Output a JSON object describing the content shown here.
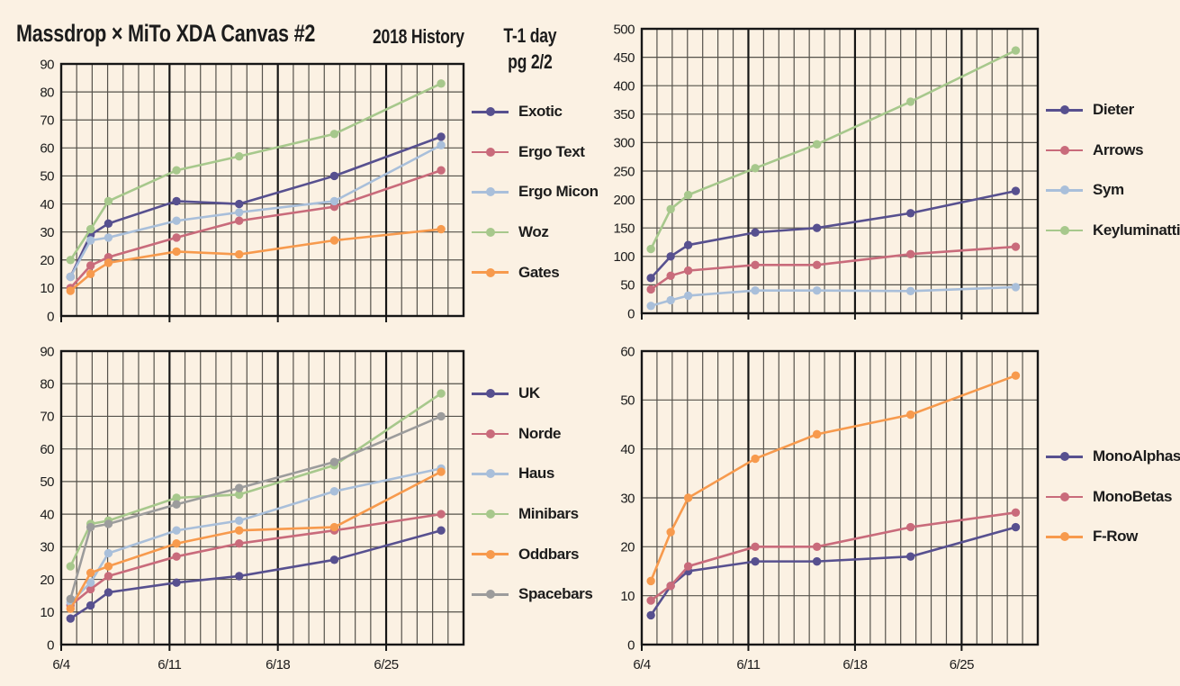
{
  "header": {
    "title": "Massdrop × MiTo XDA Canvas #2",
    "subtitle": "2018 History",
    "note_line1": "T-1 day",
    "note_line2": "pg 2/2"
  },
  "colors": {
    "background": "#fbf1e3",
    "grid": "#55524b",
    "axis": "#161616",
    "text": "#1c1c1c",
    "purple": "#57508f",
    "rose": "#c96b7b",
    "light_blue": "#a9bfda",
    "green": "#a7c88c",
    "orange": "#f79a4d",
    "gray": "#9c9c9c"
  },
  "chart_data": {
    "type": "line",
    "x_axis": {
      "max_days": 26,
      "point_days": [
        0.6,
        1.9,
        3.05,
        7.45,
        11.5,
        17.65,
        24.55
      ],
      "tick_days": [
        0,
        7,
        14,
        21
      ],
      "tick_labels": [
        "6/4",
        "6/11",
        "6/18",
        "6/25"
      ]
    },
    "charts": [
      {
        "id": "top-left",
        "ylim": [
          0,
          90
        ],
        "ystep": 10,
        "y_tick_labels": [
          "90",
          "80",
          "70",
          "60",
          "50",
          "40",
          "30",
          "20",
          "10",
          "0"
        ],
        "series": [
          {
            "name": "Exotic",
            "color": "#57508f",
            "values": [
              14,
              29,
              33,
              41,
              40,
              50,
              64
            ]
          },
          {
            "name": "Ergo Text",
            "color": "#c96b7b",
            "values": [
              10,
              18,
              21,
              28,
              34,
              39,
              52
            ]
          },
          {
            "name": "Ergo Micon",
            "color": "#a9bfda",
            "values": [
              14,
              27,
              28,
              34,
              37,
              41,
              61
            ]
          },
          {
            "name": "Woz",
            "color": "#a7c88c",
            "values": [
              20,
              31,
              41,
              52,
              57,
              65,
              83
            ]
          },
          {
            "name": "Gates",
            "color": "#f79a4d",
            "values": [
              9,
              15,
              19,
              23,
              22,
              27,
              31
            ]
          }
        ]
      },
      {
        "id": "top-right",
        "ylim": [
          0,
          500
        ],
        "ystep": 50,
        "y_tick_labels": [
          "500",
          "450",
          "400",
          "350",
          "300",
          "250",
          "200",
          "150",
          "100",
          "50",
          "0"
        ],
        "series": [
          {
            "name": "Dieter",
            "color": "#57508f",
            "values": [
              62,
              100,
              120,
              142,
              150,
              176,
              215
            ]
          },
          {
            "name": "Arrows",
            "color": "#c96b7b",
            "values": [
              42,
              66,
              75,
              85,
              85,
              104,
              117
            ]
          },
          {
            "name": "Sym",
            "color": "#a9bfda",
            "values": [
              13,
              23,
              31,
              40,
              40,
              39,
              46
            ]
          },
          {
            "name": "Keyluminatti",
            "color": "#a7c88c",
            "values": [
              113,
              183,
              208,
              255,
              297,
              372,
              462
            ]
          }
        ]
      },
      {
        "id": "bottom-left",
        "ylim": [
          0,
          90
        ],
        "ystep": 10,
        "y_tick_labels": [
          "90",
          "80",
          "70",
          "60",
          "50",
          "40",
          "30",
          "20",
          "10",
          "0"
        ],
        "series": [
          {
            "name": "UK",
            "color": "#57508f",
            "values": [
              8,
              12,
              16,
              19,
              21,
              26,
              35
            ]
          },
          {
            "name": "Norde",
            "color": "#c96b7b",
            "values": [
              12,
              17,
              21,
              27,
              31,
              35,
              40
            ]
          },
          {
            "name": "Haus",
            "color": "#a9bfda",
            "values": [
              13,
              19,
              28,
              35,
              38,
              47,
              54
            ]
          },
          {
            "name": "Minibars",
            "color": "#a7c88c",
            "values": [
              24,
              37,
              38,
              45,
              46,
              55,
              77
            ]
          },
          {
            "name": "Oddbars",
            "color": "#f79a4d",
            "values": [
              11,
              22,
              24,
              31,
              35,
              36,
              53
            ]
          },
          {
            "name": "Spacebars",
            "color": "#9c9c9c",
            "values": [
              14,
              36,
              37,
              43,
              48,
              56,
              70
            ]
          }
        ]
      },
      {
        "id": "bottom-right",
        "ylim": [
          0,
          60
        ],
        "ystep": 10,
        "y_tick_labels": [
          "60",
          "50",
          "40",
          "30",
          "20",
          "10",
          "0"
        ],
        "series": [
          {
            "name": "MonoAlphas",
            "color": "#57508f",
            "values": [
              6,
              12,
              15,
              17,
              17,
              18,
              24
            ]
          },
          {
            "name": "MonoBetas",
            "color": "#c96b7b",
            "values": [
              9,
              12,
              16,
              20,
              20,
              24,
              27
            ]
          },
          {
            "name": "F-Row",
            "color": "#f79a4d",
            "values": [
              13,
              23,
              30,
              38,
              43,
              47,
              55
            ]
          }
        ]
      }
    ]
  }
}
